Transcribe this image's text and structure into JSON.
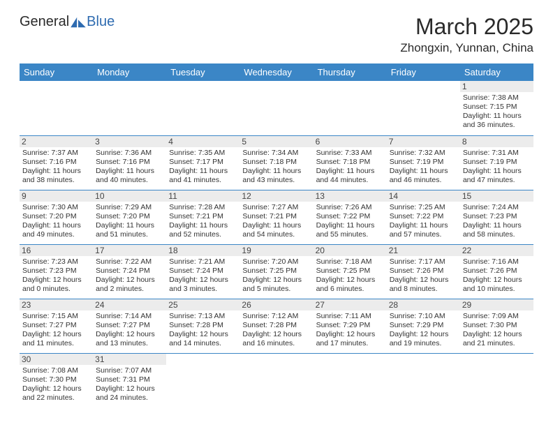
{
  "logo": {
    "text1": "General",
    "text2": "Blue"
  },
  "title": "March 2025",
  "location": "Zhongxin, Yunnan, China",
  "colors": {
    "header_blue": "#3b86c6",
    "cell_border": "#3b86c6",
    "daynum_bg": "#ececec",
    "logo_blue": "#2e6bb0"
  },
  "dow": [
    "Sunday",
    "Monday",
    "Tuesday",
    "Wednesday",
    "Thursday",
    "Friday",
    "Saturday"
  ],
  "weeks": [
    [
      null,
      null,
      null,
      null,
      null,
      null,
      {
        "n": "1",
        "sr": "7:38 AM",
        "ss": "7:15 PM",
        "dh": "11",
        "dm": "36"
      }
    ],
    [
      {
        "n": "2",
        "sr": "7:37 AM",
        "ss": "7:16 PM",
        "dh": "11",
        "dm": "38"
      },
      {
        "n": "3",
        "sr": "7:36 AM",
        "ss": "7:16 PM",
        "dh": "11",
        "dm": "40"
      },
      {
        "n": "4",
        "sr": "7:35 AM",
        "ss": "7:17 PM",
        "dh": "11",
        "dm": "41"
      },
      {
        "n": "5",
        "sr": "7:34 AM",
        "ss": "7:18 PM",
        "dh": "11",
        "dm": "43"
      },
      {
        "n": "6",
        "sr": "7:33 AM",
        "ss": "7:18 PM",
        "dh": "11",
        "dm": "44"
      },
      {
        "n": "7",
        "sr": "7:32 AM",
        "ss": "7:19 PM",
        "dh": "11",
        "dm": "46"
      },
      {
        "n": "8",
        "sr": "7:31 AM",
        "ss": "7:19 PM",
        "dh": "11",
        "dm": "47"
      }
    ],
    [
      {
        "n": "9",
        "sr": "7:30 AM",
        "ss": "7:20 PM",
        "dh": "11",
        "dm": "49"
      },
      {
        "n": "10",
        "sr": "7:29 AM",
        "ss": "7:20 PM",
        "dh": "11",
        "dm": "51"
      },
      {
        "n": "11",
        "sr": "7:28 AM",
        "ss": "7:21 PM",
        "dh": "11",
        "dm": "52"
      },
      {
        "n": "12",
        "sr": "7:27 AM",
        "ss": "7:21 PM",
        "dh": "11",
        "dm": "54"
      },
      {
        "n": "13",
        "sr": "7:26 AM",
        "ss": "7:22 PM",
        "dh": "11",
        "dm": "55"
      },
      {
        "n": "14",
        "sr": "7:25 AM",
        "ss": "7:22 PM",
        "dh": "11",
        "dm": "57"
      },
      {
        "n": "15",
        "sr": "7:24 AM",
        "ss": "7:23 PM",
        "dh": "11",
        "dm": "58"
      }
    ],
    [
      {
        "n": "16",
        "sr": "7:23 AM",
        "ss": "7:23 PM",
        "dh": "12",
        "dm": "0"
      },
      {
        "n": "17",
        "sr": "7:22 AM",
        "ss": "7:24 PM",
        "dh": "12",
        "dm": "2"
      },
      {
        "n": "18",
        "sr": "7:21 AM",
        "ss": "7:24 PM",
        "dh": "12",
        "dm": "3"
      },
      {
        "n": "19",
        "sr": "7:20 AM",
        "ss": "7:25 PM",
        "dh": "12",
        "dm": "5"
      },
      {
        "n": "20",
        "sr": "7:18 AM",
        "ss": "7:25 PM",
        "dh": "12",
        "dm": "6"
      },
      {
        "n": "21",
        "sr": "7:17 AM",
        "ss": "7:26 PM",
        "dh": "12",
        "dm": "8"
      },
      {
        "n": "22",
        "sr": "7:16 AM",
        "ss": "7:26 PM",
        "dh": "12",
        "dm": "10"
      }
    ],
    [
      {
        "n": "23",
        "sr": "7:15 AM",
        "ss": "7:27 PM",
        "dh": "12",
        "dm": "11"
      },
      {
        "n": "24",
        "sr": "7:14 AM",
        "ss": "7:27 PM",
        "dh": "12",
        "dm": "13"
      },
      {
        "n": "25",
        "sr": "7:13 AM",
        "ss": "7:28 PM",
        "dh": "12",
        "dm": "14"
      },
      {
        "n": "26",
        "sr": "7:12 AM",
        "ss": "7:28 PM",
        "dh": "12",
        "dm": "16"
      },
      {
        "n": "27",
        "sr": "7:11 AM",
        "ss": "7:29 PM",
        "dh": "12",
        "dm": "17"
      },
      {
        "n": "28",
        "sr": "7:10 AM",
        "ss": "7:29 PM",
        "dh": "12",
        "dm": "19"
      },
      {
        "n": "29",
        "sr": "7:09 AM",
        "ss": "7:30 PM",
        "dh": "12",
        "dm": "21"
      }
    ],
    [
      {
        "n": "30",
        "sr": "7:08 AM",
        "ss": "7:30 PM",
        "dh": "12",
        "dm": "22"
      },
      {
        "n": "31",
        "sr": "7:07 AM",
        "ss": "7:31 PM",
        "dh": "12",
        "dm": "24"
      },
      null,
      null,
      null,
      null,
      null
    ]
  ],
  "labels": {
    "sunrise": "Sunrise:",
    "sunset": "Sunset:",
    "daylight": "Daylight:",
    "hours_and": "hours",
    "and": "and",
    "minutes": "minutes."
  }
}
